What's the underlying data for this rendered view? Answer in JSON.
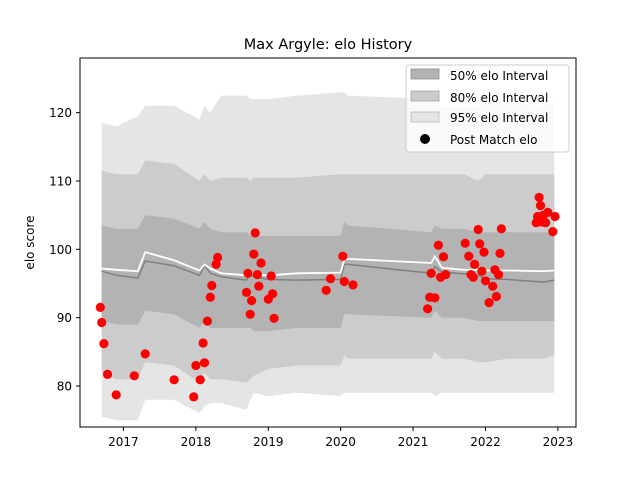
{
  "chart_data": {
    "type": "line",
    "title": "Max Argyle: elo History",
    "xlabel": "",
    "ylabel": "elo score",
    "xlim": [
      2016.4,
      2023.25
    ],
    "ylim": [
      74,
      128
    ],
    "x_ticks": [
      2017,
      2018,
      2019,
      2020,
      2021,
      2022,
      2023
    ],
    "y_ticks": [
      80,
      90,
      100,
      110,
      120
    ],
    "grid": false,
    "legend_position": "top-right",
    "legend": [
      {
        "label": "50% elo Interval",
        "kind": "band",
        "color": "#b3b3b3"
      },
      {
        "label": "80% elo Interval",
        "kind": "band",
        "color": "#cccccc"
      },
      {
        "label": "95% elo Interval",
        "kind": "band",
        "color": "#e5e5e5"
      },
      {
        "label": "Post Match elo",
        "kind": "marker",
        "color": "#000000"
      }
    ],
    "colors": {
      "band_50": "#b3b3b3",
      "band_80": "#cccccc",
      "band_95": "#e5e5e5",
      "mean_line": "#808080",
      "median_line": "#ffffff",
      "points": "#ff0000"
    },
    "bands": {
      "x": [
        2016.7,
        2016.9,
        2017.2,
        2017.3,
        2017.7,
        2018.05,
        2018.12,
        2018.2,
        2018.35,
        2018.7,
        2018.75,
        2018.8,
        2019.0,
        2019.4,
        2020.0,
        2020.05,
        2020.1,
        2021.25,
        2021.3,
        2021.4,
        2021.7,
        2021.9,
        2022.0,
        2022.3,
        2022.8,
        2022.95
      ],
      "p95_upper": [
        118.5,
        118.0,
        119.5,
        121.0,
        121.0,
        119.0,
        121.0,
        120.0,
        122.5,
        122.5,
        122.0,
        122.0,
        122.0,
        122.5,
        123.0,
        123.0,
        122.5,
        122.0,
        121.5,
        121.0,
        121.0,
        121.0,
        121.5,
        121.5,
        121.0,
        121.5
      ],
      "p80_upper": [
        111.5,
        111.0,
        111.0,
        113.0,
        112.5,
        110.0,
        111.0,
        110.0,
        110.5,
        110.5,
        110.0,
        110.5,
        110.5,
        110.5,
        111.0,
        111.0,
        111.0,
        111.0,
        111.0,
        111.0,
        111.0,
        110.0,
        111.0,
        111.0,
        111.0,
        111.0
      ],
      "p50_upper": [
        103.5,
        103.0,
        103.0,
        105.0,
        104.5,
        103.0,
        104.0,
        103.0,
        102.5,
        102.5,
        102.0,
        102.0,
        102.0,
        102.0,
        102.0,
        104.0,
        103.5,
        102.5,
        103.5,
        103.0,
        103.0,
        102.5,
        102.5,
        102.5,
        102.5,
        102.5
      ],
      "mean": [
        96.8,
        96.2,
        95.8,
        98.3,
        97.6,
        96.2,
        97.6,
        96.5,
        96.0,
        95.5,
        96.5,
        96.0,
        95.6,
        95.5,
        95.6,
        97.8,
        97.8,
        96.5,
        97.5,
        96.7,
        96.4,
        96.2,
        95.7,
        95.6,
        95.2,
        95.5
      ],
      "median": [
        97.2,
        97.0,
        96.8,
        99.6,
        98.4,
        96.9,
        97.8,
        97.2,
        96.5,
        96.2,
        97.0,
        96.3,
        96.2,
        96.5,
        96.6,
        98.5,
        98.6,
        98.0,
        99.0,
        97.3,
        97.0,
        97.0,
        96.9,
        96.9,
        96.8,
        96.9
      ],
      "p50_lower": [
        89.5,
        89.0,
        89.0,
        91.0,
        90.5,
        88.5,
        89.5,
        88.5,
        88.5,
        88.5,
        88.5,
        88.0,
        88.0,
        88.5,
        88.5,
        90.5,
        90.5,
        90.0,
        91.0,
        90.0,
        90.0,
        89.5,
        89.5,
        89.5,
        89.5,
        89.5
      ],
      "p80_lower": [
        82.0,
        81.0,
        81.0,
        83.5,
        83.0,
        80.5,
        82.0,
        81.0,
        81.0,
        80.5,
        81.0,
        81.5,
        82.5,
        83.0,
        83.0,
        84.5,
        84.0,
        84.0,
        85.0,
        84.0,
        84.0,
        83.5,
        83.5,
        84.0,
        84.0,
        84.5
      ],
      "p95_lower": [
        75.5,
        75.0,
        75.0,
        78.0,
        78.0,
        76.0,
        77.0,
        77.5,
        77.5,
        76.5,
        78.0,
        79.0,
        78.5,
        79.0,
        78.5,
        79.0,
        79.0,
        79.0,
        78.5,
        79.0,
        79.0,
        79.0,
        79.0,
        79.0,
        79.0,
        79.0
      ]
    },
    "points": [
      {
        "x": 2016.68,
        "y": 91.5
      },
      {
        "x": 2016.7,
        "y": 89.3
      },
      {
        "x": 2016.73,
        "y": 86.2
      },
      {
        "x": 2016.78,
        "y": 81.7
      },
      {
        "x": 2016.9,
        "y": 78.7
      },
      {
        "x": 2017.15,
        "y": 81.5
      },
      {
        "x": 2017.3,
        "y": 84.7
      },
      {
        "x": 2017.7,
        "y": 80.9
      },
      {
        "x": 2017.97,
        "y": 78.4
      },
      {
        "x": 2018.0,
        "y": 83.0
      },
      {
        "x": 2018.06,
        "y": 80.9
      },
      {
        "x": 2018.1,
        "y": 86.3
      },
      {
        "x": 2018.12,
        "y": 83.4
      },
      {
        "x": 2018.16,
        "y": 89.5
      },
      {
        "x": 2018.2,
        "y": 93.0
      },
      {
        "x": 2018.22,
        "y": 94.7
      },
      {
        "x": 2018.28,
        "y": 97.8
      },
      {
        "x": 2018.3,
        "y": 98.8
      },
      {
        "x": 2018.7,
        "y": 93.7
      },
      {
        "x": 2018.72,
        "y": 96.5
      },
      {
        "x": 2018.75,
        "y": 90.5
      },
      {
        "x": 2018.77,
        "y": 92.5
      },
      {
        "x": 2018.8,
        "y": 99.3
      },
      {
        "x": 2018.82,
        "y": 102.4
      },
      {
        "x": 2018.85,
        "y": 96.3
      },
      {
        "x": 2018.87,
        "y": 94.6
      },
      {
        "x": 2018.9,
        "y": 98.0
      },
      {
        "x": 2019.0,
        "y": 92.7
      },
      {
        "x": 2019.04,
        "y": 96.1
      },
      {
        "x": 2019.06,
        "y": 93.5
      },
      {
        "x": 2019.08,
        "y": 89.9
      },
      {
        "x": 2019.8,
        "y": 94.0
      },
      {
        "x": 2019.86,
        "y": 95.7
      },
      {
        "x": 2020.03,
        "y": 99.0
      },
      {
        "x": 2020.05,
        "y": 95.3
      },
      {
        "x": 2020.17,
        "y": 94.8
      },
      {
        "x": 2021.2,
        "y": 91.3
      },
      {
        "x": 2021.23,
        "y": 93.0
      },
      {
        "x": 2021.25,
        "y": 96.5
      },
      {
        "x": 2021.3,
        "y": 92.9
      },
      {
        "x": 2021.35,
        "y": 100.6
      },
      {
        "x": 2021.38,
        "y": 95.9
      },
      {
        "x": 2021.42,
        "y": 98.9
      },
      {
        "x": 2021.45,
        "y": 96.3
      },
      {
        "x": 2021.72,
        "y": 100.9
      },
      {
        "x": 2021.77,
        "y": 99.0
      },
      {
        "x": 2021.8,
        "y": 96.3
      },
      {
        "x": 2021.83,
        "y": 95.9
      },
      {
        "x": 2021.85,
        "y": 97.8
      },
      {
        "x": 2021.9,
        "y": 102.9
      },
      {
        "x": 2021.92,
        "y": 100.8
      },
      {
        "x": 2021.95,
        "y": 96.8
      },
      {
        "x": 2021.98,
        "y": 99.6
      },
      {
        "x": 2022.0,
        "y": 95.4
      },
      {
        "x": 2022.05,
        "y": 92.2
      },
      {
        "x": 2022.1,
        "y": 94.6
      },
      {
        "x": 2022.13,
        "y": 97.0
      },
      {
        "x": 2022.15,
        "y": 93.1
      },
      {
        "x": 2022.18,
        "y": 96.3
      },
      {
        "x": 2022.2,
        "y": 99.4
      },
      {
        "x": 2022.22,
        "y": 103.0
      },
      {
        "x": 2022.7,
        "y": 103.9
      },
      {
        "x": 2022.72,
        "y": 104.8
      },
      {
        "x": 2022.74,
        "y": 107.6
      },
      {
        "x": 2022.76,
        "y": 106.4
      },
      {
        "x": 2022.78,
        "y": 104.0
      },
      {
        "x": 2022.8,
        "y": 105.0
      },
      {
        "x": 2022.83,
        "y": 103.9
      },
      {
        "x": 2022.86,
        "y": 105.4
      },
      {
        "x": 2022.93,
        "y": 102.6
      },
      {
        "x": 2022.96,
        "y": 104.8
      }
    ]
  }
}
